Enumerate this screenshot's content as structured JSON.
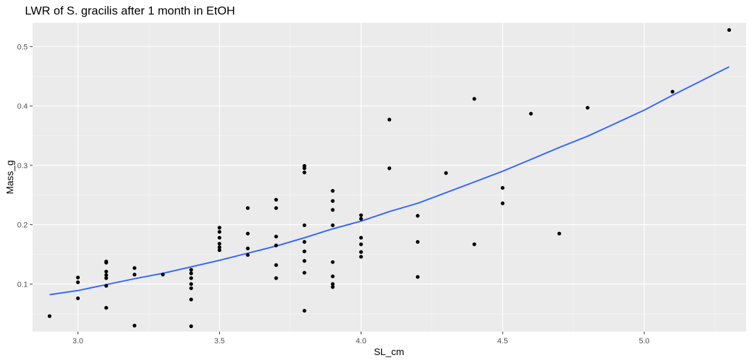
{
  "chart_data": {
    "type": "scatter",
    "title": "LWR of S. gracilis after 1 month in EtOH",
    "xlabel": "SL_cm",
    "ylabel": "Mass_g",
    "xlim": [
      2.84,
      5.36
    ],
    "ylim": [
      0.02,
      0.54
    ],
    "x_ticks": [
      3.0,
      3.5,
      4.0,
      4.5,
      5.0
    ],
    "x_tick_labels": [
      "3.0",
      "3.5",
      "4.0",
      "4.5",
      "5.0"
    ],
    "y_ticks": [
      0.1,
      0.2,
      0.3,
      0.4,
      0.5
    ],
    "y_tick_labels": [
      "0.1",
      "0.2",
      "0.3",
      "0.4",
      "0.5"
    ],
    "grid": true,
    "background": "#ebebeb",
    "point_color": "#000000",
    "line_color": "#3366ff",
    "points": [
      [
        2.9,
        0.046
      ],
      [
        3.0,
        0.111
      ],
      [
        3.0,
        0.103
      ],
      [
        3.0,
        0.076
      ],
      [
        3.1,
        0.138
      ],
      [
        3.1,
        0.136
      ],
      [
        3.1,
        0.121
      ],
      [
        3.1,
        0.115
      ],
      [
        3.1,
        0.11
      ],
      [
        3.1,
        0.097
      ],
      [
        3.1,
        0.06
      ],
      [
        3.2,
        0.127
      ],
      [
        3.2,
        0.116
      ],
      [
        3.2,
        0.03
      ],
      [
        3.3,
        0.116
      ],
      [
        3.4,
        0.124
      ],
      [
        3.4,
        0.118
      ],
      [
        3.4,
        0.11
      ],
      [
        3.4,
        0.1
      ],
      [
        3.4,
        0.093
      ],
      [
        3.4,
        0.074
      ],
      [
        3.4,
        0.029
      ],
      [
        3.5,
        0.195
      ],
      [
        3.5,
        0.188
      ],
      [
        3.5,
        0.178
      ],
      [
        3.5,
        0.168
      ],
      [
        3.5,
        0.162
      ],
      [
        3.5,
        0.157
      ],
      [
        3.6,
        0.228
      ],
      [
        3.6,
        0.185
      ],
      [
        3.6,
        0.16
      ],
      [
        3.6,
        0.149
      ],
      [
        3.7,
        0.242
      ],
      [
        3.7,
        0.228
      ],
      [
        3.7,
        0.18
      ],
      [
        3.7,
        0.165
      ],
      [
        3.7,
        0.132
      ],
      [
        3.7,
        0.11
      ],
      [
        3.8,
        0.299
      ],
      [
        3.8,
        0.295
      ],
      [
        3.8,
        0.288
      ],
      [
        3.8,
        0.199
      ],
      [
        3.8,
        0.171
      ],
      [
        3.8,
        0.155
      ],
      [
        3.8,
        0.139
      ],
      [
        3.8,
        0.119
      ],
      [
        3.8,
        0.055
      ],
      [
        3.9,
        0.257
      ],
      [
        3.9,
        0.24
      ],
      [
        3.9,
        0.225
      ],
      [
        3.9,
        0.199
      ],
      [
        3.9,
        0.137
      ],
      [
        3.9,
        0.113
      ],
      [
        3.9,
        0.1
      ],
      [
        3.9,
        0.095
      ],
      [
        4.0,
        0.216
      ],
      [
        4.0,
        0.21
      ],
      [
        4.0,
        0.178
      ],
      [
        4.0,
        0.167
      ],
      [
        4.0,
        0.154
      ],
      [
        4.0,
        0.146
      ],
      [
        4.1,
        0.377
      ],
      [
        4.1,
        0.295
      ],
      [
        4.2,
        0.215
      ],
      [
        4.2,
        0.171
      ],
      [
        4.2,
        0.112
      ],
      [
        4.3,
        0.287
      ],
      [
        4.4,
        0.412
      ],
      [
        4.4,
        0.167
      ],
      [
        4.5,
        0.262
      ],
      [
        4.5,
        0.236
      ],
      [
        4.6,
        0.387
      ],
      [
        4.7,
        0.185
      ],
      [
        4.8,
        0.397
      ],
      [
        5.1,
        0.424
      ],
      [
        5.3,
        0.528
      ]
    ],
    "smooth_line": [
      [
        2.9,
        0.082
      ],
      [
        3.0,
        0.089
      ],
      [
        3.1,
        0.099
      ],
      [
        3.2,
        0.109
      ],
      [
        3.3,
        0.118
      ],
      [
        3.4,
        0.129
      ],
      [
        3.5,
        0.14
      ],
      [
        3.6,
        0.152
      ],
      [
        3.7,
        0.164
      ],
      [
        3.8,
        0.178
      ],
      [
        3.9,
        0.193
      ],
      [
        4.0,
        0.206
      ],
      [
        4.1,
        0.222
      ],
      [
        4.2,
        0.236
      ],
      [
        4.3,
        0.254
      ],
      [
        4.4,
        0.272
      ],
      [
        4.5,
        0.29
      ],
      [
        4.6,
        0.31
      ],
      [
        4.7,
        0.33
      ],
      [
        4.8,
        0.349
      ],
      [
        4.9,
        0.371
      ],
      [
        5.0,
        0.393
      ],
      [
        5.1,
        0.418
      ],
      [
        5.2,
        0.442
      ],
      [
        5.3,
        0.466
      ]
    ]
  }
}
